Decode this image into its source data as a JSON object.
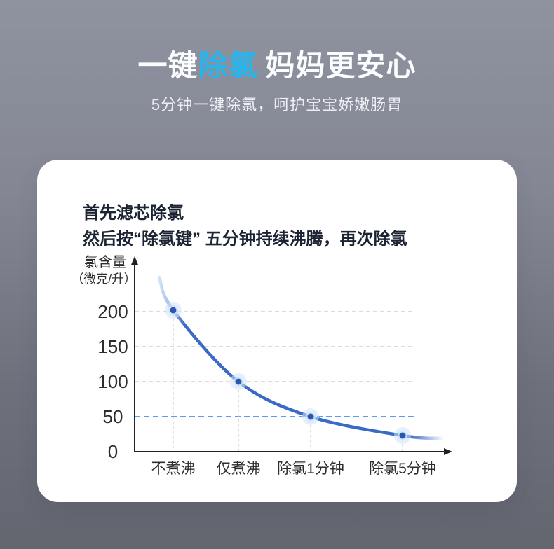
{
  "hero": {
    "title_prefix": "一键",
    "title_accent": "除氯",
    "title_rest": "妈妈更安心",
    "subtitle": "5分钟一键除氯，呵护宝宝娇嫩肠胃",
    "accent_color": "#25b5ef"
  },
  "card": {
    "heading_line1": "首先滤芯除氯",
    "heading_line2": "然后按“除氯键” 五分钟持续沸腾，再次除氯"
  },
  "chart_data": {
    "type": "line",
    "categories": [
      "不煮沸",
      "仅煮沸",
      "除氯1分钟",
      "除氯5分钟"
    ],
    "values": [
      202,
      100,
      50,
      23
    ],
    "y_ticks": [
      200,
      150,
      100,
      50,
      0
    ],
    "ylim": [
      0,
      250
    ],
    "ylabel": "氯含量（微克/升）",
    "ylabel_line1": "氯含量",
    "ylabel_line2": "（微克/升）",
    "grid": "dashed horizontal gridlines at 100/150/200 (gray) and reference at 50 (blue); dashed vertical droplines at each point",
    "legend_position": "none",
    "reference_line": {
      "value": 50,
      "color": "#4b89ee"
    },
    "line_color": "#3a6ac6",
    "line_fade_in_color": "#b9d4f3",
    "point_color": "#2d57ae",
    "halo_color": "#cfe4f9",
    "gridline_color": "#c8c8c8",
    "dropline_color": "#c6cacd",
    "axis_color": "#222222",
    "tick_color": "#2d2d2d"
  }
}
